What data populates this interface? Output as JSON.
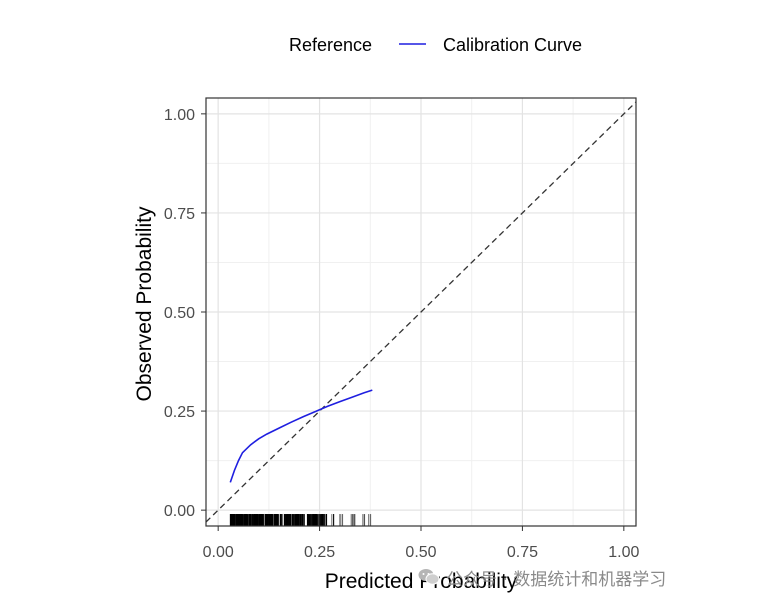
{
  "chart_data": {
    "type": "line",
    "xlabel": "Predicted Probability",
    "ylabel": "Observed Probability",
    "xlim": [
      -0.03,
      1.03
    ],
    "ylim": [
      -0.04,
      1.04
    ],
    "x_ticks": [
      0.0,
      0.25,
      0.5,
      0.75,
      1.0
    ],
    "y_ticks": [
      0.0,
      0.25,
      0.5,
      0.75,
      1.0
    ],
    "x_tick_labels": [
      "0.00",
      "0.25",
      "0.50",
      "0.75",
      "1.00"
    ],
    "y_tick_labels": [
      "0.00",
      "0.25",
      "0.50",
      "0.75",
      "1.00"
    ],
    "grid": true,
    "legend_position": "top",
    "legend": [
      {
        "label": "Reference",
        "style": "dashed",
        "color": "#333333"
      },
      {
        "label": "Calibration Curve",
        "style": "solid",
        "color": "#1f1fe0"
      }
    ],
    "series": [
      {
        "name": "Reference",
        "style": "dashed",
        "color": "#333333",
        "x": [
          -0.03,
          1.03
        ],
        "y": [
          -0.03,
          1.03
        ]
      },
      {
        "name": "Calibration Curve",
        "style": "solid",
        "color": "#1f1fe0",
        "x": [
          0.03,
          0.04,
          0.05,
          0.06,
          0.08,
          0.1,
          0.12,
          0.15,
          0.18,
          0.21,
          0.24,
          0.27,
          0.3,
          0.33,
          0.36,
          0.38
        ],
        "y": [
          0.07,
          0.1,
          0.125,
          0.145,
          0.165,
          0.18,
          0.192,
          0.207,
          0.222,
          0.236,
          0.249,
          0.262,
          0.274,
          0.285,
          0.296,
          0.303
        ]
      }
    ],
    "rug": {
      "axis": "x",
      "color": "#000000",
      "min": 0.03,
      "max": 0.38,
      "dense_range": [
        0.03,
        0.27
      ]
    }
  },
  "watermark": {
    "icon": "wechat-icon",
    "text": "公众号 · 数据统计和机器学习"
  }
}
